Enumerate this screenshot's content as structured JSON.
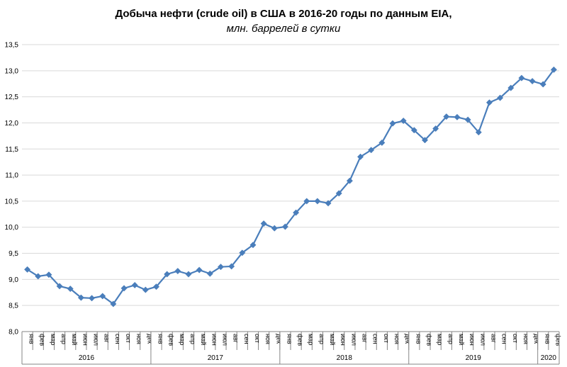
{
  "chart_data": {
    "type": "line",
    "title": "Добыча  нефти (crude oil) в США в 2016-20 годы по данным  EIA,",
    "subtitle": "млн. баррелей в сутки",
    "ylim": [
      8.0,
      13.5
    ],
    "y_ticks": [
      "8,0",
      "8,5",
      "9,0",
      "9,5",
      "10,0",
      "10,5",
      "11,0",
      "11,5",
      "12,0",
      "12,5",
      "13,0",
      "13,5"
    ],
    "grid": true,
    "legend": "none",
    "color": "#4a7ebb",
    "years": [
      {
        "label": "2016",
        "count": 12
      },
      {
        "label": "2017",
        "count": 12
      },
      {
        "label": "2018",
        "count": 12
      },
      {
        "label": "2019",
        "count": 12
      },
      {
        "label": "2020",
        "count": 2
      }
    ],
    "categories": [
      "янв",
      "фев",
      "мар",
      "апр",
      "май",
      "июн",
      "июл",
      "авг",
      "сен",
      "окт",
      "ноя",
      "дек",
      "янв",
      "фев",
      "мар",
      "апр",
      "май",
      "июн",
      "июл",
      "авг",
      "сен",
      "окт",
      "ноя",
      "дек",
      "янв",
      "фев",
      "мар",
      "апр",
      "май",
      "июн",
      "июл",
      "авг",
      "сен",
      "окт",
      "ноя",
      "дек",
      "янв",
      "фев",
      "мар",
      "апр",
      "май",
      "июн",
      "июл",
      "авг",
      "сен",
      "окт",
      "ноя",
      "дек",
      "янв",
      "фев"
    ],
    "values": [
      9.19,
      9.06,
      9.09,
      8.87,
      8.82,
      8.65,
      8.64,
      8.68,
      8.53,
      8.83,
      8.89,
      8.8,
      8.86,
      9.1,
      9.16,
      9.1,
      9.18,
      9.11,
      9.24,
      9.25,
      9.51,
      9.66,
      10.07,
      9.98,
      10.01,
      10.28,
      10.5,
      10.5,
      10.46,
      10.65,
      10.89,
      11.35,
      11.48,
      11.62,
      11.99,
      12.04,
      11.86,
      11.67,
      11.89,
      12.12,
      12.11,
      12.06,
      11.82,
      12.39,
      12.48,
      12.67,
      12.86,
      12.8,
      12.74,
      13.02
    ]
  }
}
